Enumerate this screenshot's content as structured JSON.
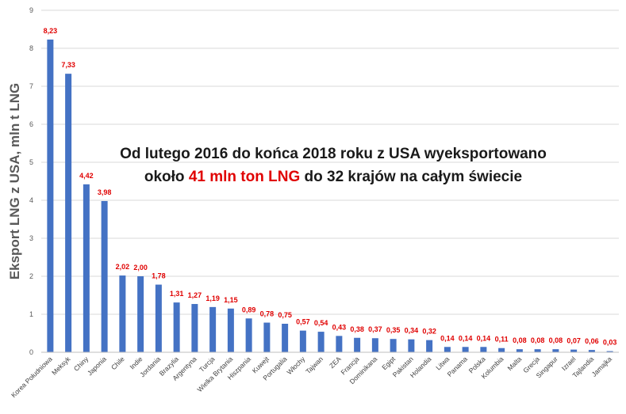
{
  "chart_data": {
    "type": "bar",
    "ylabel": "Eksport LNG z USA, mln t LNG",
    "xlabel": "",
    "ylim": [
      0,
      9
    ],
    "yticks": [
      "0",
      "1",
      "2",
      "3",
      "4",
      "5",
      "6",
      "7",
      "8",
      "9"
    ],
    "grid": true,
    "bar_color": "#4472c4",
    "label_color": "#e00000",
    "categories": [
      "Korea Południowa",
      "Meksyk",
      "Chiny",
      "Japonia",
      "Chile",
      "Indie",
      "Jordania",
      "Brazylia",
      "Argentyna",
      "Turcja",
      "Wielka Brytania",
      "Hiszpania",
      "Kuwejt",
      "Portugalia",
      "Włochy",
      "Tajwan",
      "ZEA",
      "Francja",
      "Dominikana",
      "Egipt",
      "Pakistan",
      "Holandia",
      "Litwa",
      "Panama",
      "Polska",
      "Kolumbia",
      "Malta",
      "Grecja",
      "Singapur",
      "Izrael",
      "Tajlandia",
      "Jamajka"
    ],
    "values": [
      8.23,
      7.33,
      4.42,
      3.98,
      2.02,
      2.0,
      1.78,
      1.31,
      1.27,
      1.19,
      1.15,
      0.89,
      0.78,
      0.75,
      0.57,
      0.54,
      0.43,
      0.38,
      0.37,
      0.35,
      0.34,
      0.32,
      0.14,
      0.14,
      0.14,
      0.11,
      0.08,
      0.08,
      0.08,
      0.07,
      0.06,
      0.03
    ],
    "data_labels": [
      "8,23",
      "7,33",
      "4,42",
      "3,98",
      "2,02",
      "2,00",
      "1,78",
      "1,31",
      "1,27",
      "1,19",
      "1,15",
      "0,89",
      "0,78",
      "0,75",
      "0,57",
      "0,54",
      "0,43",
      "0,38",
      "0,37",
      "0,35",
      "0,34",
      "0,32",
      "0,14",
      "0,14",
      "0,14",
      "0,11",
      "0,08",
      "0,08",
      "0,08",
      "0,07",
      "0,06",
      "0,03"
    ]
  },
  "annotation": {
    "line1": "Od lutego 2016 do końca 2018 roku z USA wyeksportowano",
    "line2_before": "około ",
    "line2_highlight": "41 mln ton LNG",
    "line2_after": " do 32 krajów na całym świecie"
  }
}
